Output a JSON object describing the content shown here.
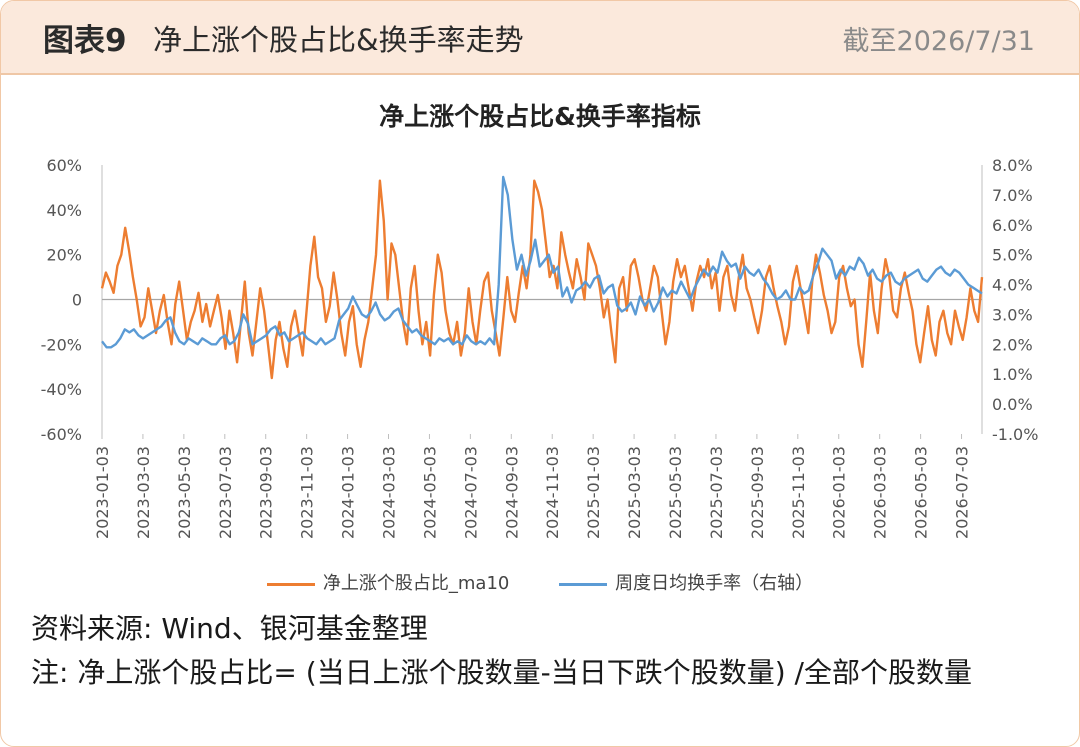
{
  "header": {
    "fig_label": "图表9",
    "fig_title": "净上涨个股占比&换手率走势",
    "date": "截至2026/7/31"
  },
  "footer": {
    "source": "资料来源: Wind、银河基金整理",
    "note": "注: 净上涨个股占比= (当日上涨个股数量-当日下跌个股数量) /全部个股数量"
  },
  "chart_data": {
    "type": "line",
    "title": "净上涨个股占比&换手率指标",
    "x_tick_labels": [
      "2023-01-03",
      "2023-03-03",
      "2023-05-03",
      "2023-07-03",
      "2023-09-03",
      "2023-11-03",
      "2024-01-03",
      "2024-03-03",
      "2024-05-03",
      "2024-07-03",
      "2024-09-03",
      "2024-11-03",
      "2025-01-03",
      "2025-03-03",
      "2025-05-03",
      "2025-07-03",
      "2025-09-03",
      "2025-11-03",
      "2026-01-03",
      "2026-03-03",
      "2026-05-03",
      "2026-07-03"
    ],
    "left_axis": {
      "ylim": [
        -60,
        60
      ],
      "ticks": [
        -60,
        -40,
        -20,
        0,
        20,
        40,
        60
      ],
      "tick_labels": [
        "-60%",
        "-40%",
        "-20%",
        "0",
        "20%",
        "40%",
        "60%"
      ]
    },
    "right_axis": {
      "ylim": [
        -1.0,
        8.0
      ],
      "ticks": [
        -1,
        0,
        1,
        2,
        3,
        4,
        5,
        6,
        7,
        8
      ],
      "tick_labels": [
        "-1.0%",
        "0.0%",
        "1.0%",
        "2.0%",
        "3.0%",
        "4.0%",
        "5.0%",
        "6.0%",
        "7.0%",
        "8.0%"
      ]
    },
    "legend_position": "bottom",
    "series": [
      {
        "name": "净上涨个股占比_ma10",
        "axis": "left",
        "color": "#ed7d31",
        "values": [
          5,
          12,
          8,
          3,
          15,
          20,
          32,
          22,
          10,
          0,
          -12,
          -8,
          5,
          -5,
          -15,
          -5,
          2,
          -10,
          -20,
          -2,
          8,
          -5,
          -18,
          -10,
          -5,
          3,
          -10,
          -2,
          -12,
          -5,
          2,
          -8,
          -22,
          -5,
          -15,
          -28,
          -10,
          8,
          -15,
          -25,
          -10,
          5,
          -5,
          -20,
          -35,
          -18,
          -10,
          -22,
          -30,
          -12,
          -5,
          -15,
          -25,
          -5,
          15,
          28,
          10,
          5,
          -10,
          -3,
          12,
          0,
          -15,
          -25,
          -10,
          -3,
          -20,
          -30,
          -18,
          -10,
          5,
          20,
          53,
          35,
          0,
          25,
          20,
          5,
          -10,
          -20,
          5,
          15,
          -5,
          -20,
          -10,
          -25,
          2,
          20,
          12,
          -5,
          -15,
          -20,
          -10,
          -25,
          -15,
          5,
          -10,
          -20,
          -5,
          8,
          12,
          -5,
          -15,
          -25,
          -8,
          10,
          -5,
          -10,
          3,
          15,
          5,
          20,
          53,
          48,
          40,
          25,
          10,
          15,
          5,
          30,
          20,
          12,
          5,
          18,
          10,
          0,
          25,
          20,
          15,
          5,
          -8,
          0,
          -15,
          -28,
          5,
          10,
          -5,
          15,
          18,
          10,
          0,
          -5,
          5,
          15,
          10,
          -5,
          -20,
          -10,
          8,
          18,
          10,
          15,
          5,
          -5,
          8,
          15,
          10,
          18,
          5,
          12,
          -5,
          10,
          15,
          2,
          -5,
          10,
          20,
          5,
          0,
          -8,
          -15,
          -5,
          10,
          15,
          5,
          -3,
          -10,
          -20,
          -12,
          8,
          15,
          5,
          -5,
          -15,
          8,
          20,
          12,
          2,
          -5,
          -15,
          -10,
          10,
          15,
          5,
          -3,
          0,
          -20,
          -30,
          -10,
          12,
          -5,
          -15,
          5,
          18,
          10,
          -5,
          -8,
          5,
          12,
          3,
          -5,
          -20,
          -28,
          -15,
          -3,
          -18,
          -25,
          -10,
          -5,
          -15,
          -20,
          -5,
          -12,
          -18,
          -8,
          5,
          -5,
          -10,
          10
        ]
      },
      {
        "name": "周度日均换手率（右轴）",
        "axis": "right",
        "color": "#5b9bd5",
        "values": [
          2.1,
          1.9,
          1.9,
          2.0,
          2.2,
          2.5,
          2.4,
          2.5,
          2.3,
          2.2,
          2.3,
          2.4,
          2.5,
          2.6,
          2.8,
          2.9,
          2.4,
          2.1,
          2.0,
          2.2,
          2.1,
          2.0,
          2.2,
          2.1,
          2.0,
          2.0,
          2.2,
          2.3,
          2.0,
          2.1,
          2.4,
          3.0,
          2.7,
          2.0,
          2.1,
          2.2,
          2.3,
          2.5,
          2.6,
          2.3,
          2.4,
          2.1,
          2.2,
          2.3,
          2.4,
          2.2,
          2.1,
          2.0,
          2.2,
          2.0,
          2.1,
          2.2,
          2.8,
          3.0,
          3.2,
          3.6,
          3.3,
          3.0,
          2.9,
          3.1,
          3.4,
          3.0,
          2.8,
          2.9,
          3.1,
          3.2,
          2.8,
          2.6,
          2.4,
          2.5,
          2.3,
          2.2,
          2.1,
          2.0,
          2.2,
          2.1,
          2.2,
          2.0,
          2.1,
          2.0,
          2.3,
          2.1,
          2.0,
          2.1,
          2.0,
          2.2,
          2.0,
          4.0,
          7.6,
          7.0,
          5.5,
          4.5,
          5.0,
          4.3,
          4.8,
          5.5,
          4.6,
          4.8,
          5.0,
          4.4,
          4.6,
          3.6,
          3.9,
          3.4,
          3.8,
          3.9,
          4.1,
          3.9,
          4.2,
          4.3,
          3.7,
          3.9,
          4.0,
          3.3,
          3.1,
          3.2,
          3.4,
          3.0,
          3.6,
          3.3,
          3.5,
          3.1,
          3.4,
          3.9,
          3.6,
          3.8,
          3.7,
          4.1,
          3.8,
          3.5,
          3.9,
          4.2,
          4.5,
          4.3,
          4.6,
          4.4,
          5.1,
          4.8,
          4.6,
          4.7,
          4.2,
          4.6,
          4.4,
          4.3,
          4.5,
          4.2,
          4.0,
          3.7,
          3.5,
          3.6,
          3.8,
          3.5,
          3.5,
          3.9,
          3.7,
          3.8,
          4.3,
          4.7,
          5.2,
          5.0,
          4.8,
          4.2,
          4.5,
          4.3,
          4.6,
          4.5,
          4.9,
          4.7,
          4.3,
          4.5,
          4.2,
          4.1,
          4.3,
          4.4,
          4.1,
          4.0,
          4.2,
          4.3,
          4.4,
          4.5,
          4.2,
          4.1,
          4.3,
          4.5,
          4.6,
          4.4,
          4.3,
          4.5,
          4.4,
          4.2,
          4.0,
          3.9,
          3.8,
          3.7
        ]
      }
    ]
  }
}
